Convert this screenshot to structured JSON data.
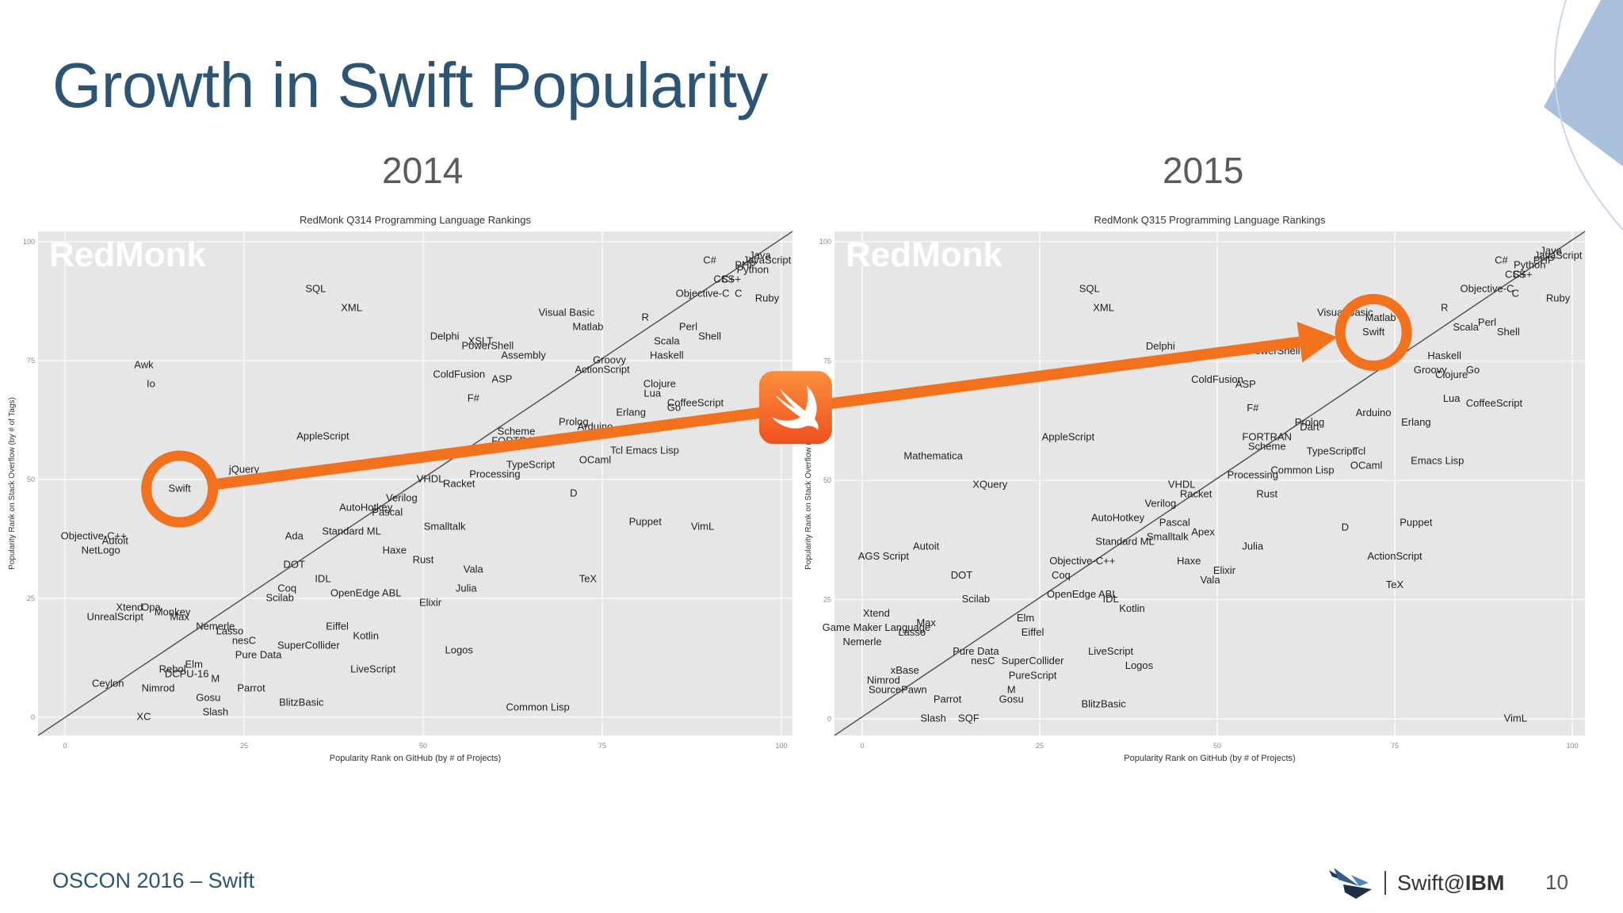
{
  "slide": {
    "title": "Growth in Swift Popularity",
    "year_left": "2014",
    "year_right": "2015",
    "footer_left": "OSCON 2016 – Swift",
    "brand_prefix": "Swift@",
    "brand_suffix": "IBM",
    "page_number": "10"
  },
  "colors": {
    "accent_orange": "#f2711c",
    "title_blue": "#2c5475",
    "plot_bg": "#e6e6e6",
    "corner_blue": "#a8c0dc"
  },
  "icons": [
    "swift-logo-icon",
    "ibm-swift-bird-icon",
    "corner-triangle-icon"
  ],
  "chart_data": [
    {
      "type": "scatter",
      "title": "RedMonk Q314 Programming Language Rankings",
      "watermark": "RedMonk",
      "xlabel": "Popularity Rank on GitHub (by # of Projects)",
      "ylabel": "Popularity Rank on Stack Overflow (by # of Tags)",
      "xlim": [
        0,
        100
      ],
      "ylim": [
        0,
        100
      ],
      "xticks": [
        "0",
        "25",
        "50",
        "75",
        "100"
      ],
      "yticks": [
        "0",
        "25",
        "50",
        "75",
        "100"
      ],
      "highlight": "Swift",
      "points": [
        {
          "label": "Java",
          "x": 97,
          "y": 97
        },
        {
          "label": "JavaScript",
          "x": 98,
          "y": 96
        },
        {
          "label": "PHP",
          "x": 95,
          "y": 95
        },
        {
          "label": "Python",
          "x": 96,
          "y": 94
        },
        {
          "label": "C#",
          "x": 90,
          "y": 96
        },
        {
          "label": "C++",
          "x": 93,
          "y": 92
        },
        {
          "label": "CSS",
          "x": 92,
          "y": 92
        },
        {
          "label": "Ruby",
          "x": 98,
          "y": 88
        },
        {
          "label": "Objective-C",
          "x": 89,
          "y": 89
        },
        {
          "label": "C",
          "x": 94,
          "y": 89
        },
        {
          "label": "R",
          "x": 81,
          "y": 84
        },
        {
          "label": "Perl",
          "x": 87,
          "y": 82
        },
        {
          "label": "Shell",
          "x": 90,
          "y": 80
        },
        {
          "label": "Scala",
          "x": 84,
          "y": 79
        },
        {
          "label": "Haskell",
          "x": 84,
          "y": 76
        },
        {
          "label": "Matlab",
          "x": 73,
          "y": 82
        },
        {
          "label": "Visual Basic",
          "x": 70,
          "y": 85
        },
        {
          "label": "SQL",
          "x": 35,
          "y": 90
        },
        {
          "label": "XML",
          "x": 40,
          "y": 86
        },
        {
          "label": "Delphi",
          "x": 53,
          "y": 80
        },
        {
          "label": "XSLT",
          "x": 58,
          "y": 79
        },
        {
          "label": "PowerShell",
          "x": 59,
          "y": 78
        },
        {
          "label": "Assembly",
          "x": 64,
          "y": 76
        },
        {
          "label": "ActionScript",
          "x": 75,
          "y": 73
        },
        {
          "label": "Groovy",
          "x": 76,
          "y": 75
        },
        {
          "label": "ColdFusion",
          "x": 55,
          "y": 72
        },
        {
          "label": "ASP",
          "x": 61,
          "y": 71
        },
        {
          "label": "Clojure",
          "x": 83,
          "y": 70
        },
        {
          "label": "Lua",
          "x": 82,
          "y": 68
        },
        {
          "label": "CoffeeScript",
          "x": 88,
          "y": 66
        },
        {
          "label": "Go",
          "x": 85,
          "y": 65
        },
        {
          "label": "Erlang",
          "x": 79,
          "y": 64
        },
        {
          "label": "F#",
          "x": 57,
          "y": 67
        },
        {
          "label": "Awk",
          "x": 11,
          "y": 74
        },
        {
          "label": "Io",
          "x": 12,
          "y": 70
        },
        {
          "label": "AppleScript",
          "x": 36,
          "y": 59
        },
        {
          "label": "Scheme",
          "x": 63,
          "y": 60
        },
        {
          "label": "FORTRAN",
          "x": 63,
          "y": 58
        },
        {
          "label": "Prolog",
          "x": 71,
          "y": 62
        },
        {
          "label": "Arduino",
          "x": 74,
          "y": 61
        },
        {
          "label": "Emacs Lisp",
          "x": 82,
          "y": 56
        },
        {
          "label": "Tcl",
          "x": 77,
          "y": 56
        },
        {
          "label": "OCaml",
          "x": 74,
          "y": 54
        },
        {
          "label": "TypeScript",
          "x": 65,
          "y": 53
        },
        {
          "label": "Processing",
          "x": 60,
          "y": 51
        },
        {
          "label": "D",
          "x": 71,
          "y": 47
        },
        {
          "label": "jQuery",
          "x": 25,
          "y": 52
        },
        {
          "label": "Swift",
          "x": 16,
          "y": 48
        },
        {
          "label": "VHDL",
          "x": 51,
          "y": 50
        },
        {
          "label": "Racket",
          "x": 55,
          "y": 49
        },
        {
          "label": "Verilog",
          "x": 47,
          "y": 46
        },
        {
          "label": "AutoHotkey",
          "x": 42,
          "y": 44
        },
        {
          "label": "Pascal",
          "x": 45,
          "y": 43
        },
        {
          "label": "Smalltalk",
          "x": 53,
          "y": 40
        },
        {
          "label": "Puppet",
          "x": 81,
          "y": 41
        },
        {
          "label": "VimL",
          "x": 89,
          "y": 40
        },
        {
          "label": "Ada",
          "x": 32,
          "y": 38
        },
        {
          "label": "Standard ML",
          "x": 40,
          "y": 39
        },
        {
          "label": "Haxe",
          "x": 46,
          "y": 35
        },
        {
          "label": "Rust",
          "x": 50,
          "y": 33
        },
        {
          "label": "Vala",
          "x": 57,
          "y": 31
        },
        {
          "label": "TeX",
          "x": 73,
          "y": 29
        },
        {
          "label": "Objective-C++",
          "x": 4,
          "y": 38
        },
        {
          "label": "Autoit",
          "x": 7,
          "y": 37
        },
        {
          "label": "NetLogo",
          "x": 5,
          "y": 35
        },
        {
          "label": "DOT",
          "x": 32,
          "y": 32
        },
        {
          "label": "IDL",
          "x": 36,
          "y": 29
        },
        {
          "label": "Coq",
          "x": 31,
          "y": 27
        },
        {
          "label": "Scilab",
          "x": 30,
          "y": 25
        },
        {
          "label": "OpenEdge ABL",
          "x": 42,
          "y": 26
        },
        {
          "label": "Julia",
          "x": 56,
          "y": 27
        },
        {
          "label": "Elixir",
          "x": 51,
          "y": 24
        },
        {
          "label": "Xtend",
          "x": 9,
          "y": 23
        },
        {
          "label": "Opa",
          "x": 12,
          "y": 23
        },
        {
          "label": "Max",
          "x": 16,
          "y": 21
        },
        {
          "label": "Monkey",
          "x": 15,
          "y": 22
        },
        {
          "label": "UnrealScript",
          "x": 7,
          "y": 21
        },
        {
          "label": "Nemerle",
          "x": 21,
          "y": 19
        },
        {
          "label": "Lasso",
          "x": 23,
          "y": 18
        },
        {
          "label": "Eiffel",
          "x": 38,
          "y": 19
        },
        {
          "label": "Kotlin",
          "x": 42,
          "y": 17
        },
        {
          "label": "nesC",
          "x": 25,
          "y": 16
        },
        {
          "label": "SuperCollider",
          "x": 34,
          "y": 15
        },
        {
          "label": "Pure Data",
          "x": 27,
          "y": 13
        },
        {
          "label": "Logos",
          "x": 55,
          "y": 14
        },
        {
          "label": "LiveScript",
          "x": 43,
          "y": 10
        },
        {
          "label": "Elm",
          "x": 18,
          "y": 11
        },
        {
          "label": "Rebol",
          "x": 15,
          "y": 10
        },
        {
          "label": "DCPU-16",
          "x": 17,
          "y": 9
        },
        {
          "label": "M",
          "x": 21,
          "y": 8
        },
        {
          "label": "Ceylon",
          "x": 6,
          "y": 7
        },
        {
          "label": "Nimrod",
          "x": 13,
          "y": 6
        },
        {
          "label": "Parrot",
          "x": 26,
          "y": 6
        },
        {
          "label": "Gosu",
          "x": 20,
          "y": 4
        },
        {
          "label": "BlitzBasic",
          "x": 33,
          "y": 3
        },
        {
          "label": "Slash",
          "x": 21,
          "y": 1
        },
        {
          "label": "XC",
          "x": 11,
          "y": 0
        },
        {
          "label": "Common Lisp",
          "x": 66,
          "y": 2
        }
      ]
    },
    {
      "type": "scatter",
      "title": "RedMonk Q315 Programming Language Rankings",
      "watermark": "RedMonk",
      "xlabel": "Popularity Rank on GitHub (by # of Projects)",
      "ylabel": "Popularity Rank on Stack Overflow (by # of Tags)",
      "xlim": [
        0,
        100
      ],
      "ylim": [
        0,
        100
      ],
      "xticks": [
        "0",
        "25",
        "50",
        "75",
        "100"
      ],
      "yticks": [
        "0",
        "25",
        "50",
        "75",
        "100"
      ],
      "highlight": "Swift",
      "points": [
        {
          "label": "JavaScript",
          "x": 98,
          "y": 97
        },
        {
          "label": "Java",
          "x": 97,
          "y": 98
        },
        {
          "label": "PHP",
          "x": 96,
          "y": 96
        },
        {
          "label": "Python",
          "x": 94,
          "y": 95
        },
        {
          "label": "C#",
          "x": 90,
          "y": 96
        },
        {
          "label": "C++",
          "x": 93,
          "y": 93
        },
        {
          "label": "CSS",
          "x": 92,
          "y": 93
        },
        {
          "label": "Ruby",
          "x": 98,
          "y": 88
        },
        {
          "label": "Objective-C",
          "x": 88,
          "y": 90
        },
        {
          "label": "C",
          "x": 92,
          "y": 89
        },
        {
          "label": "R",
          "x": 82,
          "y": 86
        },
        {
          "label": "Perl",
          "x": 88,
          "y": 83
        },
        {
          "label": "Shell",
          "x": 91,
          "y": 81
        },
        {
          "label": "Scala",
          "x": 85,
          "y": 82
        },
        {
          "label": "Matlab",
          "x": 73,
          "y": 84
        },
        {
          "label": "Swift",
          "x": 72,
          "y": 81
        },
        {
          "label": "Visual Basic",
          "x": 68,
          "y": 85
        },
        {
          "label": "Haskell",
          "x": 82,
          "y": 76
        },
        {
          "label": "Groovy",
          "x": 80,
          "y": 73
        },
        {
          "label": "Clojure",
          "x": 83,
          "y": 72
        },
        {
          "label": "Go",
          "x": 86,
          "y": 73
        },
        {
          "label": "Lua",
          "x": 83,
          "y": 67
        },
        {
          "label": "CoffeeScript",
          "x": 89,
          "y": 66
        },
        {
          "label": "Erlang",
          "x": 78,
          "y": 62
        },
        {
          "label": "Arduino",
          "x": 72,
          "y": 64
        },
        {
          "label": "SQL",
          "x": 32,
          "y": 90
        },
        {
          "label": "XML",
          "x": 34,
          "y": 86
        },
        {
          "label": "Delphi",
          "x": 42,
          "y": 78
        },
        {
          "label": "PowerShell",
          "x": 58,
          "y": 77
        },
        {
          "label": "ColdFusion",
          "x": 50,
          "y": 71
        },
        {
          "label": "ASP",
          "x": 54,
          "y": 70
        },
        {
          "label": "F#",
          "x": 55,
          "y": 65
        },
        {
          "label": "AppleScript",
          "x": 29,
          "y": 59
        },
        {
          "label": "Mathematica",
          "x": 10,
          "y": 55
        },
        {
          "label": "XQuery",
          "x": 18,
          "y": 49
        },
        {
          "label": "Prolog",
          "x": 63,
          "y": 62
        },
        {
          "label": "Dart",
          "x": 63,
          "y": 61
        },
        {
          "label": "FORTRAN",
          "x": 57,
          "y": 59
        },
        {
          "label": "Scheme",
          "x": 57,
          "y": 57
        },
        {
          "label": "TypeScript",
          "x": 66,
          "y": 56
        },
        {
          "label": "Tcl",
          "x": 70,
          "y": 56
        },
        {
          "label": "OCaml",
          "x": 71,
          "y": 53
        },
        {
          "label": "Emacs Lisp",
          "x": 81,
          "y": 54
        },
        {
          "label": "Common Lisp",
          "x": 62,
          "y": 52
        },
        {
          "label": "Processing",
          "x": 55,
          "y": 51
        },
        {
          "label": "Rust",
          "x": 57,
          "y": 47
        },
        {
          "label": "D",
          "x": 68,
          "y": 40
        },
        {
          "label": "Puppet",
          "x": 78,
          "y": 41
        },
        {
          "label": "VHDL",
          "x": 45,
          "y": 49
        },
        {
          "label": "Racket",
          "x": 47,
          "y": 47
        },
        {
          "label": "Verilog",
          "x": 42,
          "y": 45
        },
        {
          "label": "AutoHotkey",
          "x": 36,
          "y": 42
        },
        {
          "label": "Pascal",
          "x": 44,
          "y": 41
        },
        {
          "label": "Apex",
          "x": 48,
          "y": 39
        },
        {
          "label": "Smalltalk",
          "x": 43,
          "y": 38
        },
        {
          "label": "Standard ML",
          "x": 37,
          "y": 37
        },
        {
          "label": "Julia",
          "x": 55,
          "y": 36
        },
        {
          "label": "Haxe",
          "x": 46,
          "y": 33
        },
        {
          "label": "Elixir",
          "x": 51,
          "y": 31
        },
        {
          "label": "Vala",
          "x": 49,
          "y": 29
        },
        {
          "label": "ActionScript",
          "x": 75,
          "y": 34
        },
        {
          "label": "TeX",
          "x": 75,
          "y": 28
        },
        {
          "label": "Autoit",
          "x": 9,
          "y": 36
        },
        {
          "label": "AGS Script",
          "x": 3,
          "y": 34
        },
        {
          "label": "Objective-C++",
          "x": 31,
          "y": 33
        },
        {
          "label": "Coq",
          "x": 28,
          "y": 30
        },
        {
          "label": "DOT",
          "x": 14,
          "y": 30
        },
        {
          "label": "Scilab",
          "x": 16,
          "y": 25
        },
        {
          "label": "OpenEdge ABL",
          "x": 31,
          "y": 26
        },
        {
          "label": "IDL",
          "x": 35,
          "y": 25
        },
        {
          "label": "Kotlin",
          "x": 38,
          "y": 23
        },
        {
          "label": "Elm",
          "x": 23,
          "y": 21
        },
        {
          "label": "Eiffel",
          "x": 24,
          "y": 18
        },
        {
          "label": "Xtend",
          "x": 2,
          "y": 22
        },
        {
          "label": "Game Maker Language",
          "x": 2,
          "y": 19
        },
        {
          "label": "Max",
          "x": 9,
          "y": 20
        },
        {
          "label": "Lasso",
          "x": 7,
          "y": 18
        },
        {
          "label": "Nemerle",
          "x": 0,
          "y": 16
        },
        {
          "label": "Pure Data",
          "x": 16,
          "y": 14
        },
        {
          "label": "nesC",
          "x": 17,
          "y": 12
        },
        {
          "label": "SuperCollider",
          "x": 24,
          "y": 12
        },
        {
          "label": "LiveScript",
          "x": 35,
          "y": 14
        },
        {
          "label": "Logos",
          "x": 39,
          "y": 11
        },
        {
          "label": "PureScript",
          "x": 24,
          "y": 9
        },
        {
          "label": "xBase",
          "x": 6,
          "y": 10
        },
        {
          "label": "Nimrod",
          "x": 3,
          "y": 8
        },
        {
          "label": "SourcePawn",
          "x": 5,
          "y": 6
        },
        {
          "label": "M",
          "x": 21,
          "y": 6
        },
        {
          "label": "Gosu",
          "x": 21,
          "y": 4
        },
        {
          "label": "Parrot",
          "x": 12,
          "y": 4
        },
        {
          "label": "BlitzBasic",
          "x": 34,
          "y": 3
        },
        {
          "label": "Slash",
          "x": 10,
          "y": 0
        },
        {
          "label": "SQF",
          "x": 15,
          "y": 0
        },
        {
          "label": "VimL",
          "x": 92,
          "y": 0
        }
      ]
    }
  ]
}
